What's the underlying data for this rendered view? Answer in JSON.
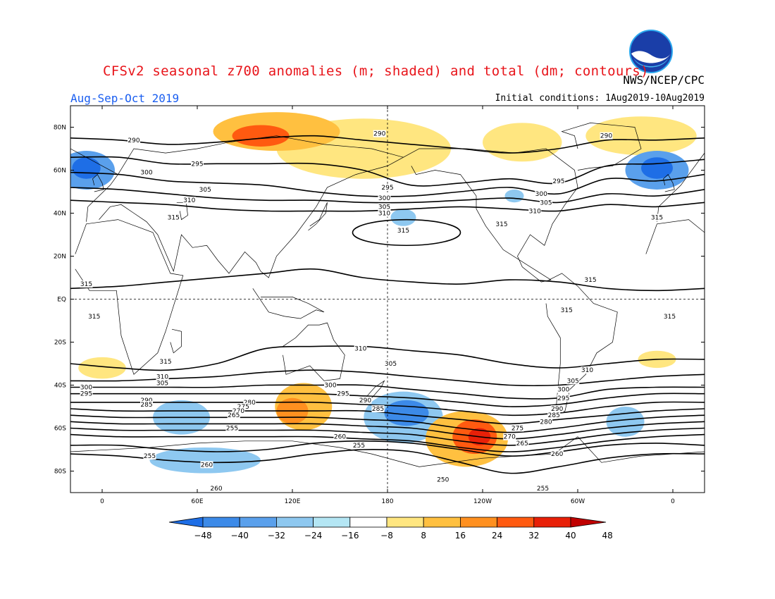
{
  "title": "CFSv2 seasonal z700 anomalies (m; shaded) and total (dm; contours)",
  "agency": "NWS/NCEP/CPC",
  "season": "Aug-Sep-Oct 2019",
  "initial_conditions": "Initial conditions: 1Aug2019-10Aug2019",
  "logo": {
    "text": "NOAA",
    "icon": "noaa-logo-icon"
  },
  "axes": {
    "lat_labels": [
      "80N",
      "60N",
      "40N",
      "20N",
      "EQ",
      "20S",
      "40S",
      "60S",
      "80S"
    ],
    "lat_values": [
      80,
      60,
      40,
      20,
      0,
      -20,
      -40,
      -60,
      -80
    ],
    "lon_labels": [
      "0",
      "60E",
      "120E",
      "180",
      "120W",
      "60W",
      "0"
    ],
    "lon_values": [
      0,
      60,
      120,
      180,
      240,
      300,
      360
    ],
    "lon_range": [
      -20,
      380
    ],
    "lat_range": [
      -90,
      90
    ]
  },
  "colorbar": {
    "levels": [
      "-48",
      "-40",
      "-32",
      "-24",
      "-16",
      "-8",
      "8",
      "16",
      "24",
      "32",
      "40",
      "48"
    ],
    "colors": [
      "#1e6ee6",
      "#3c8ae8",
      "#5aa0ec",
      "#8ec8f0",
      "#b4e6f4",
      "#ffffff",
      "#ffe680",
      "#ffc040",
      "#ff9020",
      "#ff5a10",
      "#e82008",
      "#c00000"
    ]
  },
  "anomalies": [
    {
      "lon": -10,
      "lat": 60,
      "rx": 18,
      "ry": 9,
      "value": -24
    },
    {
      "lon": -10,
      "lat": 61,
      "rx": 9,
      "ry": 5,
      "value": -40
    },
    {
      "lon": 350,
      "lat": 60,
      "rx": 20,
      "ry": 9,
      "value": -24
    },
    {
      "lon": 350,
      "lat": 61,
      "rx": 10,
      "ry": 5,
      "value": -40
    },
    {
      "lon": 110,
      "lat": 78,
      "rx": 40,
      "ry": 9,
      "value": 16
    },
    {
      "lon": 100,
      "lat": 76,
      "rx": 18,
      "ry": 5,
      "value": 32
    },
    {
      "lon": 165,
      "lat": 70,
      "rx": 55,
      "ry": 14,
      "value": 8
    },
    {
      "lon": 265,
      "lat": 73,
      "rx": 25,
      "ry": 9,
      "value": 8
    },
    {
      "lon": 340,
      "lat": 76,
      "rx": 35,
      "ry": 9,
      "value": 8
    },
    {
      "lon": 190,
      "lat": 38,
      "rx": 8,
      "ry": 4,
      "value": -16
    },
    {
      "lon": 260,
      "lat": 48,
      "rx": 6,
      "ry": 3,
      "value": -16
    },
    {
      "lon": 127,
      "lat": -50,
      "rx": 18,
      "ry": 11,
      "value": 16
    },
    {
      "lon": 120,
      "lat": -52,
      "rx": 10,
      "ry": 6,
      "value": 24
    },
    {
      "lon": 190,
      "lat": -55,
      "rx": 25,
      "ry": 12,
      "value": -16
    },
    {
      "lon": 192,
      "lat": -53,
      "rx": 14,
      "ry": 6,
      "value": -32
    },
    {
      "lon": 230,
      "lat": -65,
      "rx": 26,
      "ry": 13,
      "value": 16
    },
    {
      "lon": 235,
      "lat": -64,
      "rx": 14,
      "ry": 8,
      "value": 32
    },
    {
      "lon": 238,
      "lat": -64,
      "rx": 7,
      "ry": 4,
      "value": 40
    },
    {
      "lon": 65,
      "lat": -75,
      "rx": 35,
      "ry": 6,
      "value": -16
    },
    {
      "lon": 50,
      "lat": -55,
      "rx": 18,
      "ry": 8,
      "value": -16
    },
    {
      "lon": 330,
      "lat": -57,
      "rx": 12,
      "ry": 7,
      "value": -16
    },
    {
      "lon": 0,
      "lat": -32,
      "rx": 15,
      "ry": 5,
      "value": 8
    },
    {
      "lon": 350,
      "lat": -28,
      "rx": 12,
      "ry": 4,
      "value": 8
    }
  ],
  "contours": [
    {
      "value": "290",
      "lats": [
        75,
        74,
        72,
        73,
        75,
        76,
        74,
        72,
        70,
        68,
        70,
        74,
        74,
        75
      ]
    },
    {
      "value": "295",
      "lats": [
        66,
        66,
        63,
        63,
        63,
        63,
        60,
        53,
        54,
        56,
        54,
        62,
        63,
        65
      ]
    },
    {
      "value": "300",
      "lats": [
        59,
        58,
        55,
        54,
        53,
        50,
        48,
        48,
        50,
        52,
        49,
        56,
        55,
        58
      ]
    },
    {
      "value": "305",
      "lats": [
        52,
        51,
        49,
        47,
        46,
        46,
        45,
        45,
        46,
        47,
        45,
        49,
        48,
        51
      ]
    },
    {
      "value": "310",
      "lats": [
        46,
        45,
        44,
        42,
        41,
        41,
        41,
        42,
        43,
        42,
        41,
        44,
        43,
        45
      ]
    },
    {
      "value": "315",
      "lats": [
        5,
        6,
        8,
        10,
        12,
        14,
        10,
        8,
        7,
        9,
        8,
        5,
        4,
        5
      ]
    },
    {
      "value": "310",
      "lats": [
        -30,
        -32,
        -33,
        -30,
        -23,
        -22,
        -22,
        -24,
        -26,
        -30,
        -32,
        -30,
        -28,
        -28
      ]
    },
    {
      "value": "305",
      "lats": [
        -38,
        -38,
        -37,
        -36,
        -34,
        -33,
        -34,
        -36,
        -38,
        -40,
        -40,
        -38,
        -36,
        -35
      ]
    },
    {
      "value": "300",
      "lats": [
        -41,
        -41,
        -41,
        -41,
        -40,
        -40,
        -40,
        -42,
        -44,
        -46,
        -46,
        -42,
        -41,
        -41
      ]
    },
    {
      "value": "295",
      "lats": [
        -44,
        -44,
        -44,
        -44,
        -44,
        -44,
        -45,
        -46,
        -48,
        -50,
        -49,
        -46,
        -44,
        -44
      ]
    },
    {
      "value": "290",
      "lats": [
        -48,
        -48,
        -48,
        -48,
        -48,
        -48,
        -49,
        -50,
        -52,
        -54,
        -53,
        -50,
        -48,
        -48
      ]
    },
    {
      "value": "285",
      "lats": [
        -51,
        -52,
        -52,
        -52,
        -52,
        -52,
        -52,
        -54,
        -56,
        -58,
        -56,
        -54,
        -52,
        -51
      ]
    },
    {
      "value": "280",
      "lats": [
        -54,
        -55,
        -55,
        -55,
        -55,
        -55,
        -56,
        -57,
        -60,
        -62,
        -60,
        -57,
        -55,
        -54
      ]
    },
    {
      "value": "275",
      "lats": [
        -57,
        -58,
        -58,
        -58,
        -58,
        -58,
        -59,
        -60,
        -63,
        -65,
        -63,
        -60,
        -58,
        -57
      ]
    },
    {
      "value": "270",
      "lats": [
        -60,
        -61,
        -61,
        -61,
        -61,
        -61,
        -62,
        -63,
        -66,
        -68,
        -66,
        -63,
        -61,
        -60
      ]
    },
    {
      "value": "265",
      "lats": [
        -63,
        -64,
        -64,
        -64,
        -64,
        -64,
        -65,
        -66,
        -69,
        -71,
        -69,
        -66,
        -64,
        -63
      ]
    },
    {
      "value": "260",
      "lats": [
        -68,
        -68,
        -70,
        -71,
        -70,
        -67,
        -66,
        -67,
        -70,
        -73,
        -71,
        -68,
        -67,
        -68
      ]
    },
    {
      "value": "255",
      "lats": [
        -72,
        -73,
        -75,
        -76,
        -75,
        -72,
        -70,
        -71,
        -76,
        -81,
        -78,
        -74,
        -72,
        -72
      ]
    }
  ],
  "contour_labels": [
    {
      "text": "290",
      "lon": 20,
      "lat": 74
    },
    {
      "text": "290",
      "lon": 175,
      "lat": 77
    },
    {
      "text": "290",
      "lon": 318,
      "lat": 76
    },
    {
      "text": "295",
      "lon": 60,
      "lat": 63
    },
    {
      "text": "295",
      "lon": 180,
      "lat": 52
    },
    {
      "text": "295",
      "lon": 288,
      "lat": 55
    },
    {
      "text": "300",
      "lon": 28,
      "lat": 59
    },
    {
      "text": "300",
      "lon": 178,
      "lat": 47
    },
    {
      "text": "300",
      "lon": 277,
      "lat": 49
    },
    {
      "text": "305",
      "lon": 65,
      "lat": 51
    },
    {
      "text": "305",
      "lon": 178,
      "lat": 43
    },
    {
      "text": "305",
      "lon": 280,
      "lat": 45
    },
    {
      "text": "310",
      "lon": 55,
      "lat": 46
    },
    {
      "text": "310",
      "lon": 178,
      "lat": 40
    },
    {
      "text": "310",
      "lon": 273,
      "lat": 41
    },
    {
      "text": "315",
      "lon": 45,
      "lat": 38
    },
    {
      "text": "315",
      "lon": 190,
      "lat": 32
    },
    {
      "text": "315",
      "lon": 252,
      "lat": 35
    },
    {
      "text": "315",
      "lon": 350,
      "lat": 38
    },
    {
      "text": "315",
      "lon": -10,
      "lat": 7
    },
    {
      "text": "315",
      "lon": 308,
      "lat": 9
    },
    {
      "text": "315",
      "lon": -5,
      "lat": -8
    },
    {
      "text": "315",
      "lon": 293,
      "lat": -5
    },
    {
      "text": "315",
      "lon": 358,
      "lat": -8
    },
    {
      "text": "315",
      "lon": 40,
      "lat": -29
    },
    {
      "text": "310",
      "lon": 38,
      "lat": -36
    },
    {
      "text": "310",
      "lon": 163,
      "lat": -23
    },
    {
      "text": "310",
      "lon": 306,
      "lat": -33
    },
    {
      "text": "305",
      "lon": 38,
      "lat": -39
    },
    {
      "text": "305",
      "lon": 182,
      "lat": -30
    },
    {
      "text": "305",
      "lon": 297,
      "lat": -38
    },
    {
      "text": "300",
      "lon": -10,
      "lat": -41
    },
    {
      "text": "300",
      "lon": 144,
      "lat": -40
    },
    {
      "text": "300",
      "lon": 291,
      "lat": -42
    },
    {
      "text": "295",
      "lon": -10,
      "lat": -44
    },
    {
      "text": "295",
      "lon": 152,
      "lat": -44
    },
    {
      "text": "295",
      "lon": 291,
      "lat": -46
    },
    {
      "text": "290",
      "lon": 28,
      "lat": -47
    },
    {
      "text": "290",
      "lon": 166,
      "lat": -47
    },
    {
      "text": "290",
      "lon": 287,
      "lat": -51
    },
    {
      "text": "285",
      "lon": 28,
      "lat": -49
    },
    {
      "text": "285",
      "lon": 174,
      "lat": -51
    },
    {
      "text": "285",
      "lon": 285,
      "lat": -54
    },
    {
      "text": "280",
      "lon": 93,
      "lat": -48
    },
    {
      "text": "280",
      "lon": 280,
      "lat": -57
    },
    {
      "text": "275",
      "lon": 89,
      "lat": -50
    },
    {
      "text": "275",
      "lon": 262,
      "lat": -60
    },
    {
      "text": "270",
      "lon": 86,
      "lat": -52
    },
    {
      "text": "270",
      "lon": 257,
      "lat": -64
    },
    {
      "text": "265",
      "lon": 83,
      "lat": -54
    },
    {
      "text": "265",
      "lon": 265,
      "lat": -67
    },
    {
      "text": "260",
      "lon": 150,
      "lat": -64
    },
    {
      "text": "260",
      "lon": 66,
      "lat": -77
    },
    {
      "text": "260",
      "lon": 287,
      "lat": -72
    },
    {
      "text": "260",
      "lon": 72,
      "lat": -88
    },
    {
      "text": "255",
      "lon": 82,
      "lat": -60
    },
    {
      "text": "255",
      "lon": 30,
      "lat": -73
    },
    {
      "text": "255",
      "lon": 162,
      "lat": -68
    },
    {
      "text": "255",
      "lon": 278,
      "lat": -88
    },
    {
      "text": "250",
      "lon": 215,
      "lat": -84
    }
  ]
}
